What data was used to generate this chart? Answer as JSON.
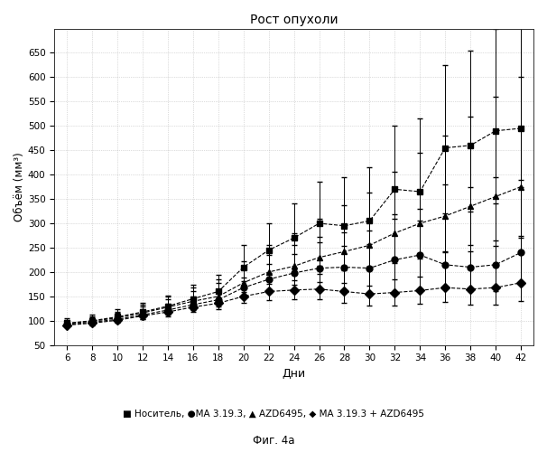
{
  "title": "Рост опухоли",
  "xlabel": "Дни",
  "ylabel": "Объём (мм³)",
  "x_ticks": [
    6,
    8,
    10,
    12,
    14,
    16,
    18,
    20,
    22,
    24,
    26,
    28,
    30,
    32,
    34,
    36,
    38,
    40,
    42
  ],
  "y_ticks": [
    50,
    100,
    150,
    200,
    250,
    300,
    350,
    400,
    450,
    500,
    550,
    600,
    650
  ],
  "ylim": [
    50,
    700
  ],
  "xlim": [
    5,
    43
  ],
  "fig_label": "Фиг. 4а",
  "series": {
    "Носитель": {
      "marker": "s",
      "color": "#000000",
      "linestyle": "--",
      "x": [
        6,
        8,
        10,
        12,
        14,
        16,
        18,
        20,
        22,
        24,
        26,
        28,
        30,
        32,
        34,
        36,
        38,
        40,
        42
      ],
      "y": [
        95,
        100,
        108,
        118,
        130,
        145,
        160,
        210,
        245,
        270,
        300,
        295,
        305,
        370,
        365,
        455,
        460,
        490,
        495
      ],
      "yerr_lo": [
        5,
        5,
        7,
        9,
        12,
        14,
        17,
        22,
        28,
        33,
        38,
        42,
        48,
        52,
        60,
        75,
        85,
        95,
        105
      ],
      "yerr_hi": [
        10,
        12,
        15,
        18,
        22,
        28,
        35,
        45,
        55,
        70,
        85,
        100,
        110,
        130,
        150,
        170,
        195,
        210,
        230
      ]
    },
    "MA 3.19.3": {
      "marker": "o",
      "color": "#000000",
      "linestyle": "--",
      "x": [
        6,
        8,
        10,
        12,
        14,
        16,
        18,
        20,
        22,
        24,
        26,
        28,
        30,
        32,
        34,
        36,
        38,
        40,
        42
      ],
      "y": [
        92,
        97,
        103,
        112,
        122,
        133,
        143,
        168,
        185,
        198,
        208,
        210,
        208,
        225,
        235,
        215,
        210,
        215,
        240
      ],
      "yerr_lo": [
        4,
        5,
        6,
        8,
        10,
        12,
        14,
        17,
        20,
        24,
        28,
        32,
        36,
        40,
        45,
        48,
        50,
        55,
        60
      ],
      "yerr_hi": [
        8,
        10,
        13,
        17,
        22,
        28,
        35,
        42,
        50,
        58,
        65,
        72,
        78,
        85,
        95,
        105,
        115,
        125,
        135
      ]
    },
    "AZD6495": {
      "marker": "^",
      "color": "#000000",
      "linestyle": "--",
      "x": [
        6,
        8,
        10,
        12,
        14,
        16,
        18,
        20,
        22,
        24,
        26,
        28,
        30,
        32,
        34,
        36,
        38,
        40,
        42
      ],
      "y": [
        94,
        99,
        106,
        116,
        128,
        140,
        150,
        178,
        200,
        212,
        230,
        242,
        255,
        280,
        300,
        315,
        335,
        355,
        375
      ],
      "yerr_lo": [
        4,
        5,
        7,
        9,
        11,
        13,
        15,
        19,
        24,
        28,
        33,
        38,
        44,
        52,
        62,
        72,
        80,
        90,
        100
      ],
      "yerr_hi": [
        8,
        10,
        13,
        17,
        22,
        28,
        35,
        45,
        55,
        68,
        80,
        95,
        108,
        125,
        145,
        165,
        185,
        205,
        225
      ]
    },
    "MA 3.19.3 + AZD6495": {
      "marker": "D",
      "color": "#000000",
      "linestyle": "--",
      "x": [
        6,
        8,
        10,
        12,
        14,
        16,
        18,
        20,
        22,
        24,
        26,
        28,
        30,
        32,
        34,
        36,
        38,
        40,
        42
      ],
      "y": [
        91,
        95,
        101,
        110,
        118,
        128,
        136,
        150,
        160,
        163,
        165,
        160,
        155,
        158,
        162,
        168,
        165,
        168,
        178
      ],
      "yerr_lo": [
        3,
        4,
        5,
        7,
        9,
        10,
        12,
        14,
        17,
        19,
        21,
        23,
        24,
        26,
        28,
        30,
        32,
        35,
        38
      ],
      "yerr_hi": [
        6,
        8,
        10,
        13,
        17,
        22,
        27,
        32,
        38,
        43,
        48,
        52,
        56,
        60,
        65,
        72,
        78,
        85,
        92
      ]
    }
  }
}
